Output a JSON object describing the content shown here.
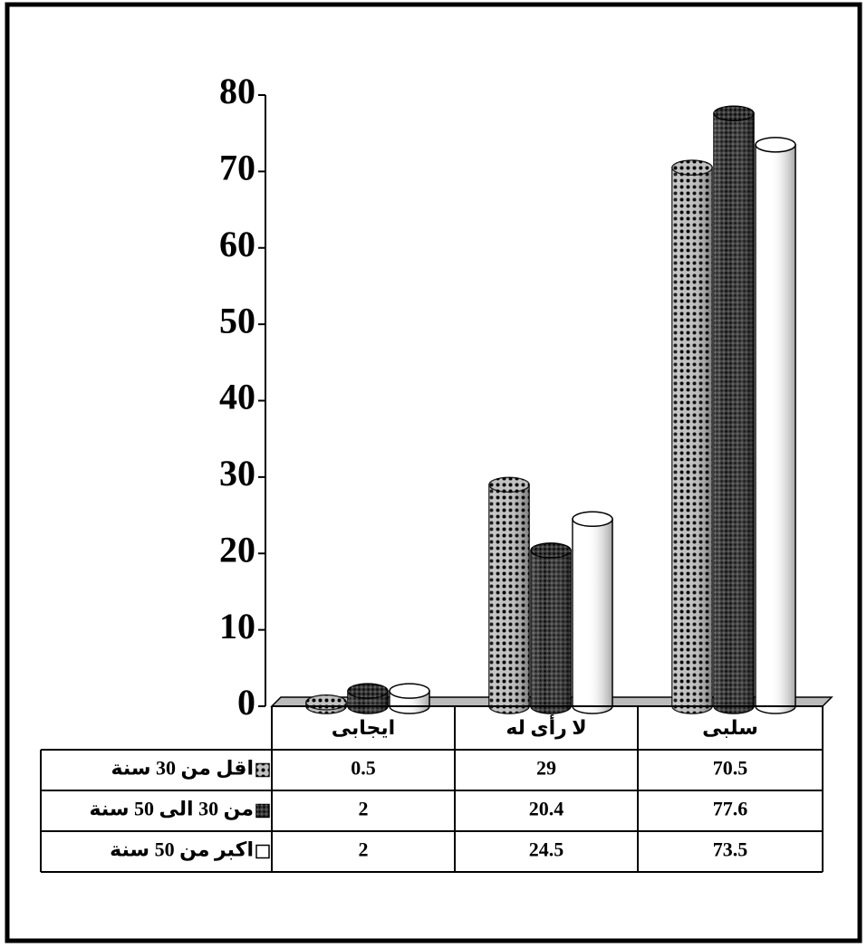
{
  "chart_data": {
    "type": "bar",
    "categories": [
      "ايجابى",
      "لا رأى له",
      "سلبى"
    ],
    "series": [
      {
        "name": "اقل من 30 سنة",
        "color": "#a0a0a0",
        "values": [
          0.5,
          29,
          70.5
        ]
      },
      {
        "name": "من 30 الى 50 سنة",
        "color": "#3a3a3a",
        "values": [
          2,
          20.4,
          77.6
        ]
      },
      {
        "name": "اكبر من 50 سنة",
        "color": "#ffffff",
        "values": [
          2,
          24.5,
          73.5
        ]
      }
    ],
    "ylim": [
      0,
      80
    ],
    "yticks": [
      0,
      10,
      20,
      30,
      40,
      50,
      60,
      70,
      80
    ]
  }
}
